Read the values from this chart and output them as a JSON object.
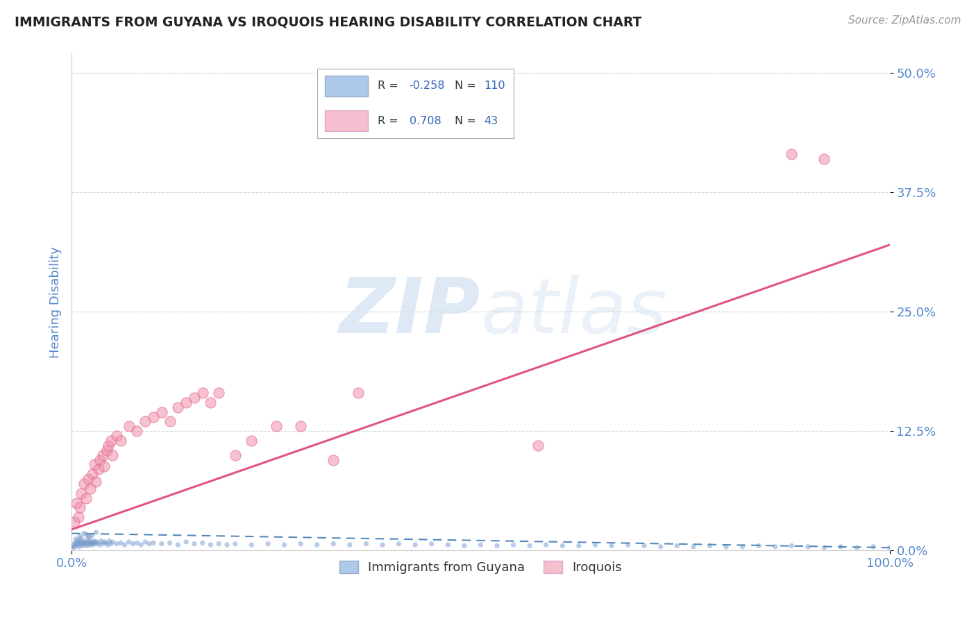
{
  "title": "IMMIGRANTS FROM GUYANA VS IROQUOIS HEARING DISABILITY CORRELATION CHART",
  "source": "Source: ZipAtlas.com",
  "ylabel": "Hearing Disability",
  "watermark": "ZIPatlas",
  "legend_series": [
    {
      "label": "Immigrants from Guyana",
      "R": -0.258,
      "N": 110,
      "color": "#adc8e8",
      "marker_color": "#7799cc",
      "line_color": "#5588bb"
    },
    {
      "label": "Iroquois",
      "R": 0.708,
      "N": 43,
      "color": "#f5bfcf",
      "marker_color": "#f090aa",
      "line_color": "#e05580"
    }
  ],
  "xlim": [
    0.0,
    1.0
  ],
  "ylim": [
    0.0,
    0.52
  ],
  "xtick_positions": [
    0.0,
    1.0
  ],
  "xtick_labels": [
    "0.0%",
    "100.0%"
  ],
  "ytick_positions": [
    0.0,
    0.125,
    0.25,
    0.375,
    0.5
  ],
  "ytick_labels": [
    "0.0%",
    "12.5%",
    "25.0%",
    "37.5%",
    "50.0%"
  ],
  "blue_x": [
    0.001,
    0.002,
    0.003,
    0.004,
    0.005,
    0.006,
    0.007,
    0.008,
    0.009,
    0.01,
    0.011,
    0.012,
    0.013,
    0.014,
    0.015,
    0.016,
    0.017,
    0.018,
    0.019,
    0.02,
    0.021,
    0.022,
    0.023,
    0.024,
    0.025,
    0.026,
    0.027,
    0.028,
    0.029,
    0.03,
    0.032,
    0.034,
    0.036,
    0.038,
    0.04,
    0.042,
    0.044,
    0.046,
    0.048,
    0.05,
    0.055,
    0.06,
    0.065,
    0.07,
    0.075,
    0.08,
    0.085,
    0.09,
    0.095,
    0.1,
    0.11,
    0.12,
    0.13,
    0.14,
    0.15,
    0.16,
    0.17,
    0.18,
    0.19,
    0.2,
    0.22,
    0.24,
    0.26,
    0.28,
    0.3,
    0.32,
    0.34,
    0.36,
    0.38,
    0.4,
    0.42,
    0.44,
    0.46,
    0.48,
    0.5,
    0.52,
    0.54,
    0.56,
    0.58,
    0.6,
    0.62,
    0.64,
    0.66,
    0.68,
    0.7,
    0.72,
    0.74,
    0.76,
    0.78,
    0.8,
    0.82,
    0.84,
    0.86,
    0.88,
    0.9,
    0.92,
    0.94,
    0.96,
    0.98,
    1.0,
    0.005,
    0.01,
    0.015,
    0.02,
    0.025,
    0.008,
    0.012,
    0.018,
    0.022,
    0.03
  ],
  "blue_y": [
    0.004,
    0.006,
    0.003,
    0.008,
    0.005,
    0.007,
    0.009,
    0.006,
    0.004,
    0.008,
    0.01,
    0.007,
    0.005,
    0.009,
    0.006,
    0.008,
    0.01,
    0.007,
    0.005,
    0.009,
    0.008,
    0.006,
    0.01,
    0.007,
    0.009,
    0.006,
    0.008,
    0.01,
    0.007,
    0.009,
    0.008,
    0.006,
    0.01,
    0.007,
    0.009,
    0.008,
    0.006,
    0.01,
    0.007,
    0.009,
    0.007,
    0.008,
    0.006,
    0.009,
    0.007,
    0.008,
    0.006,
    0.009,
    0.007,
    0.008,
    0.007,
    0.008,
    0.006,
    0.009,
    0.007,
    0.008,
    0.006,
    0.007,
    0.006,
    0.007,
    0.006,
    0.007,
    0.006,
    0.007,
    0.006,
    0.007,
    0.006,
    0.007,
    0.006,
    0.007,
    0.006,
    0.007,
    0.006,
    0.005,
    0.006,
    0.005,
    0.006,
    0.005,
    0.006,
    0.005,
    0.005,
    0.006,
    0.005,
    0.006,
    0.005,
    0.004,
    0.005,
    0.004,
    0.005,
    0.004,
    0.004,
    0.005,
    0.004,
    0.005,
    0.004,
    0.003,
    0.004,
    0.003,
    0.004,
    0.003,
    0.012,
    0.015,
    0.018,
    0.014,
    0.016,
    0.011,
    0.013,
    0.017,
    0.014,
    0.019
  ],
  "pink_x": [
    0.003,
    0.006,
    0.008,
    0.01,
    0.012,
    0.015,
    0.018,
    0.02,
    0.023,
    0.025,
    0.028,
    0.03,
    0.033,
    0.035,
    0.038,
    0.04,
    0.043,
    0.045,
    0.048,
    0.05,
    0.055,
    0.06,
    0.07,
    0.08,
    0.09,
    0.1,
    0.11,
    0.12,
    0.13,
    0.14,
    0.15,
    0.16,
    0.17,
    0.18,
    0.2,
    0.22,
    0.25,
    0.28,
    0.32,
    0.35,
    0.57,
    0.88,
    0.92
  ],
  "pink_y": [
    0.03,
    0.05,
    0.035,
    0.045,
    0.06,
    0.07,
    0.055,
    0.075,
    0.065,
    0.08,
    0.09,
    0.072,
    0.085,
    0.095,
    0.1,
    0.088,
    0.105,
    0.11,
    0.115,
    0.1,
    0.12,
    0.115,
    0.13,
    0.125,
    0.135,
    0.14,
    0.145,
    0.135,
    0.15,
    0.155,
    0.16,
    0.165,
    0.155,
    0.165,
    0.1,
    0.115,
    0.13,
    0.13,
    0.095,
    0.165,
    0.11,
    0.415,
    0.41
  ],
  "blue_trend_x": [
    0.0,
    1.0
  ],
  "blue_trend_y": [
    0.018,
    0.003
  ],
  "pink_trend_x": [
    0.0,
    1.0
  ],
  "pink_trend_y": [
    0.022,
    0.32
  ],
  "background_color": "#ffffff",
  "grid_color": "#cccccc",
  "title_color": "#222222",
  "axis_label_color": "#5588cc",
  "tick_label_color": "#5588cc",
  "watermark_color": "#c5d8ed",
  "legend_text_color": "#333333",
  "legend_val_color": "#3366bb"
}
